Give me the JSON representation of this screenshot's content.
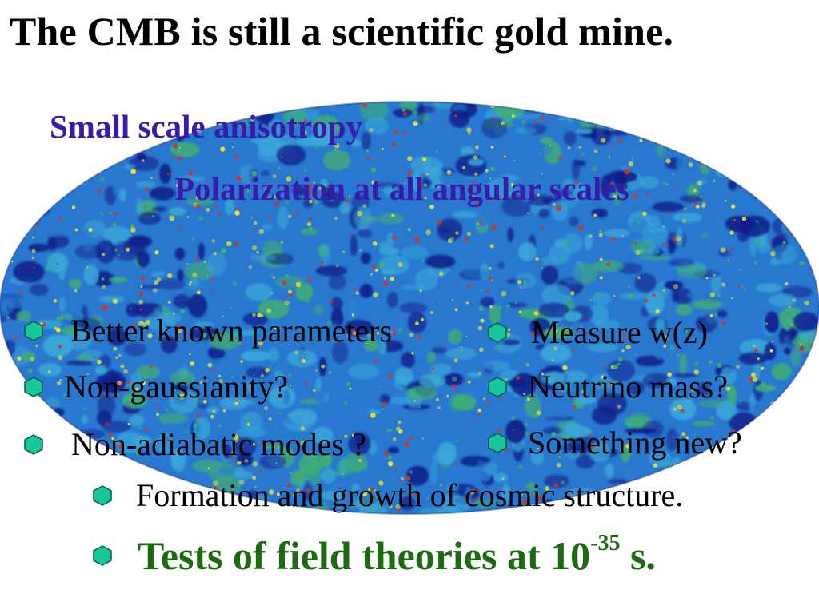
{
  "slide": {
    "title": "The CMB is still a scientific gold mine.",
    "headings": {
      "small_scale": "Small scale anisotropy",
      "polarization": "Polarization at all angular scales"
    },
    "left_bullets": [
      {
        "label": "Better known parameters"
      },
      {
        "label": "Non-gaussianity?"
      },
      {
        "label": "Non-adiabatic modes ?"
      }
    ],
    "right_bullets": [
      {
        "label": "Measure w(z)"
      },
      {
        "label": "Neutrino mass?"
      },
      {
        "label": "Something new?"
      }
    ],
    "structure_bullet": "Formation and growth of cosmic structure.",
    "final_bullet": {
      "prefix": "Tests of field theories at 10",
      "exponent": "-35",
      "suffix": " s."
    }
  },
  "colors": {
    "heading": "#3a1aa8",
    "final_bullet": "#1d6a12",
    "bullet_fill": "#17c79b",
    "bullet_outline": "#0b5a46",
    "map_blue_dark": "#101c88",
    "map_blue": "#2878d0",
    "map_cyan": "#3aa8d8",
    "map_green": "#40b070",
    "map_yellow": "#e6e23a",
    "map_red": "#d83020"
  },
  "icons": {
    "bullet": "hexagon-bullet-icon",
    "background": "cmb-sky-map"
  }
}
